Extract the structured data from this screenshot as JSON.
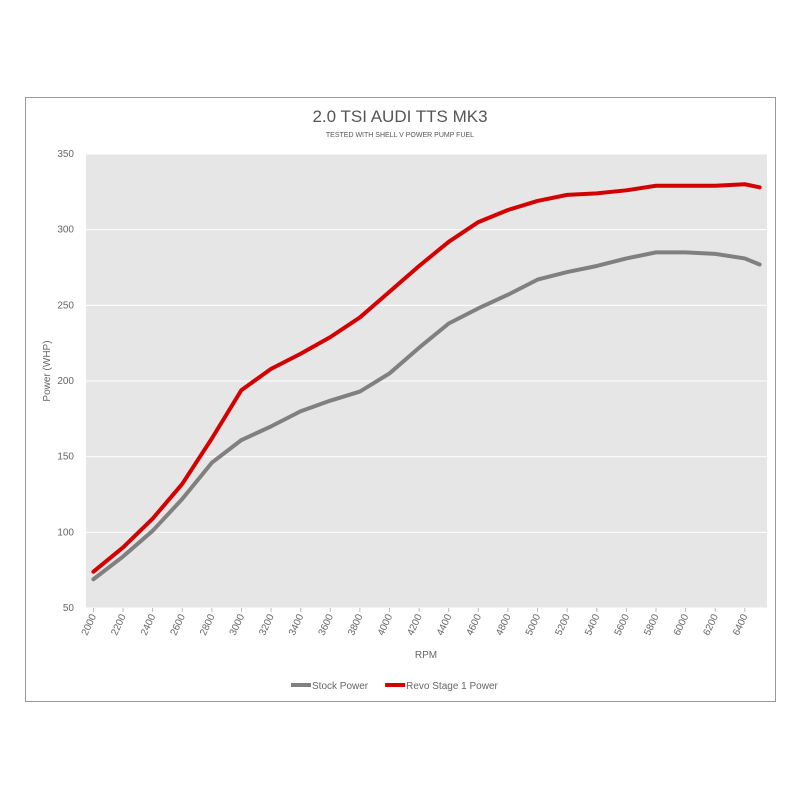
{
  "chart_data": {
    "type": "line",
    "title": "2.0 TSI AUDI TTS MK3",
    "subtitle": "TESTED WITH SHELL V POWER PUMP FUEL",
    "x_label": "RPM",
    "y_label": "Power (WHP)",
    "x": [
      2000,
      2200,
      2400,
      2600,
      2800,
      3000,
      3200,
      3400,
      3600,
      3800,
      4000,
      4200,
      4400,
      4600,
      4800,
      5000,
      5200,
      5400,
      5600,
      5800,
      6000,
      6200,
      6400,
      6500
    ],
    "series": [
      {
        "name": "Stock Power",
        "color": "#808080",
        "values": [
          69,
          84,
          101,
          122,
          146,
          161,
          170,
          180,
          187,
          193,
          205,
          222,
          238,
          248,
          257,
          267,
          272,
          276,
          281,
          285,
          285,
          284,
          281,
          277
        ]
      },
      {
        "name": "Revo Stage 1 Power",
        "color": "#d40000",
        "values": [
          74,
          90,
          109,
          132,
          162,
          194,
          208,
          218,
          229,
          242,
          259,
          276,
          292,
          305,
          313,
          319,
          323,
          324,
          326,
          329,
          329,
          329,
          330,
          328
        ]
      }
    ],
    "xlim": [
      1950,
      6550
    ],
    "xticks": [
      2000,
      2200,
      2400,
      2600,
      2800,
      3000,
      3200,
      3400,
      3600,
      3800,
      4000,
      4200,
      4400,
      4600,
      4800,
      5000,
      5200,
      5400,
      5600,
      5800,
      6000,
      6200,
      6400
    ],
    "ylim": [
      50,
      350
    ],
    "yticks": [
      50,
      100,
      150,
      200,
      250,
      300,
      350
    ],
    "grid": true,
    "legend": "bottom"
  }
}
